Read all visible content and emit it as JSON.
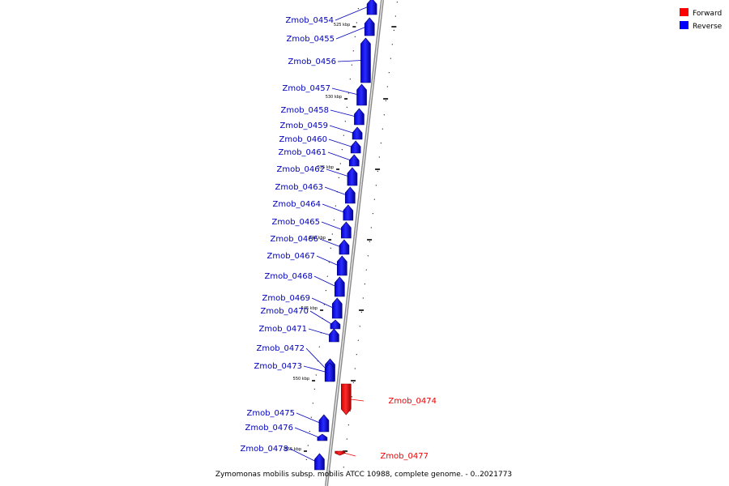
{
  "legend": [
    {
      "label": "Forward",
      "color": "#ff0000"
    },
    {
      "label": "Reverse",
      "color": "#0000ff"
    }
  ],
  "caption": "Zymomonas mobilis subsp. mobilis ATCC 10988, complete genome. - 0..2021773",
  "strand_colors": {
    "forward": "#ff0000",
    "reverse": "#0000ff",
    "reverse_label": "#0000bb",
    "forward_label": "#ee0000"
  },
  "ticks": [
    {
      "label": "525 kbp"
    },
    {
      "label": "530 kbp"
    },
    {
      "label": "535 kbp"
    },
    {
      "label": "540 kbp"
    },
    {
      "label": "545 kbp"
    },
    {
      "label": "550 kbp"
    },
    {
      "label": "555 kbp"
    }
  ],
  "genes": [
    {
      "name": "Zmob_0454",
      "strand": "reverse"
    },
    {
      "name": "Zmob_0455",
      "strand": "reverse"
    },
    {
      "name": "Zmob_0456",
      "strand": "reverse"
    },
    {
      "name": "Zmob_0457",
      "strand": "reverse"
    },
    {
      "name": "Zmob_0458",
      "strand": "reverse"
    },
    {
      "name": "Zmob_0459",
      "strand": "reverse"
    },
    {
      "name": "Zmob_0460",
      "strand": "reverse"
    },
    {
      "name": "Zmob_0461",
      "strand": "reverse"
    },
    {
      "name": "Zmob_0462",
      "strand": "reverse"
    },
    {
      "name": "Zmob_0463",
      "strand": "reverse"
    },
    {
      "name": "Zmob_0464",
      "strand": "reverse"
    },
    {
      "name": "Zmob_0465",
      "strand": "reverse"
    },
    {
      "name": "Zmob_0466",
      "strand": "reverse"
    },
    {
      "name": "Zmob_0467",
      "strand": "reverse"
    },
    {
      "name": "Zmob_0468",
      "strand": "reverse"
    },
    {
      "name": "Zmob_0469",
      "strand": "reverse"
    },
    {
      "name": "Zmob_0470",
      "strand": "reverse"
    },
    {
      "name": "Zmob_0471",
      "strand": "reverse"
    },
    {
      "name": "Zmob_0472",
      "strand": "reverse"
    },
    {
      "name": "Zmob_0473",
      "strand": "reverse"
    },
    {
      "name": "Zmob_0474",
      "strand": "forward"
    },
    {
      "name": "Zmob_0475",
      "strand": "reverse"
    },
    {
      "name": "Zmob_0476",
      "strand": "reverse"
    },
    {
      "name": "Zmob_0477",
      "strand": "forward"
    },
    {
      "name": "Zmob_0478",
      "strand": "reverse"
    }
  ]
}
